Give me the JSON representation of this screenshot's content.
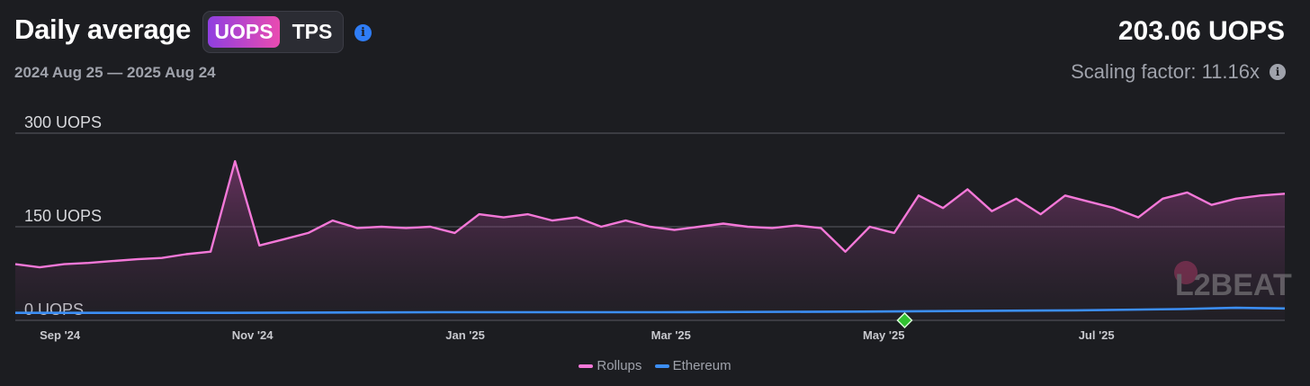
{
  "header": {
    "title": "Daily average",
    "toggle_active": "UOPS",
    "toggle_other": "TPS",
    "date_range": "2024 Aug 25 — 2025 Aug 24",
    "current_value": "203.06 UOPS",
    "scaling_factor": "Scaling factor: 11.16x"
  },
  "watermark": "L2BEAT",
  "colors": {
    "rollups": "#f478d8",
    "ethereum": "#3c8ef5",
    "accent_from": "#8f3fe0",
    "accent_to": "#e94bb1",
    "milestone": "#30c130"
  },
  "icons": [
    "info-icon",
    "info-icon",
    "milestone-diamond-icon"
  ],
  "chart_data": {
    "type": "line",
    "x_start": "2024-08-25",
    "x_end": "2025-08-24",
    "y_ticks": [
      "0 UOPS",
      "150 UOPS",
      "300 UOPS"
    ],
    "y_tick_values": [
      0,
      150,
      300
    ],
    "ylim": [
      0,
      300
    ],
    "x_ticks": [
      {
        "label": "Sep '24",
        "date": "2024-09-01"
      },
      {
        "label": "Nov '24",
        "date": "2024-11-01"
      },
      {
        "label": "Jan '25",
        "date": "2025-01-01"
      },
      {
        "label": "Mar '25",
        "date": "2025-03-01"
      },
      {
        "label": "May '25",
        "date": "2025-05-01"
      },
      {
        "label": "Jul '25",
        "date": "2025-07-01"
      }
    ],
    "milestone_date": "2025-05-07",
    "legend": [
      "Rollups",
      "Ethereum"
    ],
    "series": [
      {
        "name": "Rollups",
        "points": [
          [
            "2024-08-25",
            90
          ],
          [
            "2024-09-01",
            85
          ],
          [
            "2024-09-08",
            90
          ],
          [
            "2024-09-15",
            92
          ],
          [
            "2024-09-22",
            95
          ],
          [
            "2024-09-29",
            98
          ],
          [
            "2024-10-06",
            100
          ],
          [
            "2024-10-13",
            106
          ],
          [
            "2024-10-20",
            110
          ],
          [
            "2024-10-27",
            255
          ],
          [
            "2024-11-03",
            120
          ],
          [
            "2024-11-10",
            130
          ],
          [
            "2024-11-17",
            140
          ],
          [
            "2024-11-24",
            160
          ],
          [
            "2024-12-01",
            148
          ],
          [
            "2024-12-08",
            150
          ],
          [
            "2024-12-15",
            148
          ],
          [
            "2024-12-22",
            150
          ],
          [
            "2024-12-29",
            140
          ],
          [
            "2025-01-05",
            170
          ],
          [
            "2025-01-12",
            165
          ],
          [
            "2025-01-19",
            170
          ],
          [
            "2025-01-26",
            160
          ],
          [
            "2025-02-02",
            165
          ],
          [
            "2025-02-09",
            150
          ],
          [
            "2025-02-16",
            160
          ],
          [
            "2025-02-23",
            150
          ],
          [
            "2025-03-02",
            145
          ],
          [
            "2025-03-09",
            150
          ],
          [
            "2025-03-16",
            155
          ],
          [
            "2025-03-23",
            150
          ],
          [
            "2025-03-30",
            148
          ],
          [
            "2025-04-06",
            152
          ],
          [
            "2025-04-13",
            148
          ],
          [
            "2025-04-20",
            110
          ],
          [
            "2025-04-27",
            150
          ],
          [
            "2025-05-04",
            140
          ],
          [
            "2025-05-11",
            200
          ],
          [
            "2025-05-18",
            180
          ],
          [
            "2025-05-25",
            210
          ],
          [
            "2025-06-01",
            175
          ],
          [
            "2025-06-08",
            195
          ],
          [
            "2025-06-15",
            170
          ],
          [
            "2025-06-22",
            200
          ],
          [
            "2025-06-29",
            190
          ],
          [
            "2025-07-06",
            180
          ],
          [
            "2025-07-13",
            165
          ],
          [
            "2025-07-20",
            195
          ],
          [
            "2025-07-27",
            205
          ],
          [
            "2025-08-03",
            185
          ],
          [
            "2025-08-10",
            195
          ],
          [
            "2025-08-17",
            200
          ],
          [
            "2025-08-24",
            203
          ]
        ]
      },
      {
        "name": "Ethereum",
        "points": [
          [
            "2024-08-25",
            12
          ],
          [
            "2024-10-25",
            12
          ],
          [
            "2024-12-25",
            13
          ],
          [
            "2025-02-25",
            13
          ],
          [
            "2025-04-25",
            14
          ],
          [
            "2025-06-25",
            16
          ],
          [
            "2025-07-25",
            18
          ],
          [
            "2025-08-10",
            20
          ],
          [
            "2025-08-24",
            19
          ]
        ]
      }
    ]
  }
}
